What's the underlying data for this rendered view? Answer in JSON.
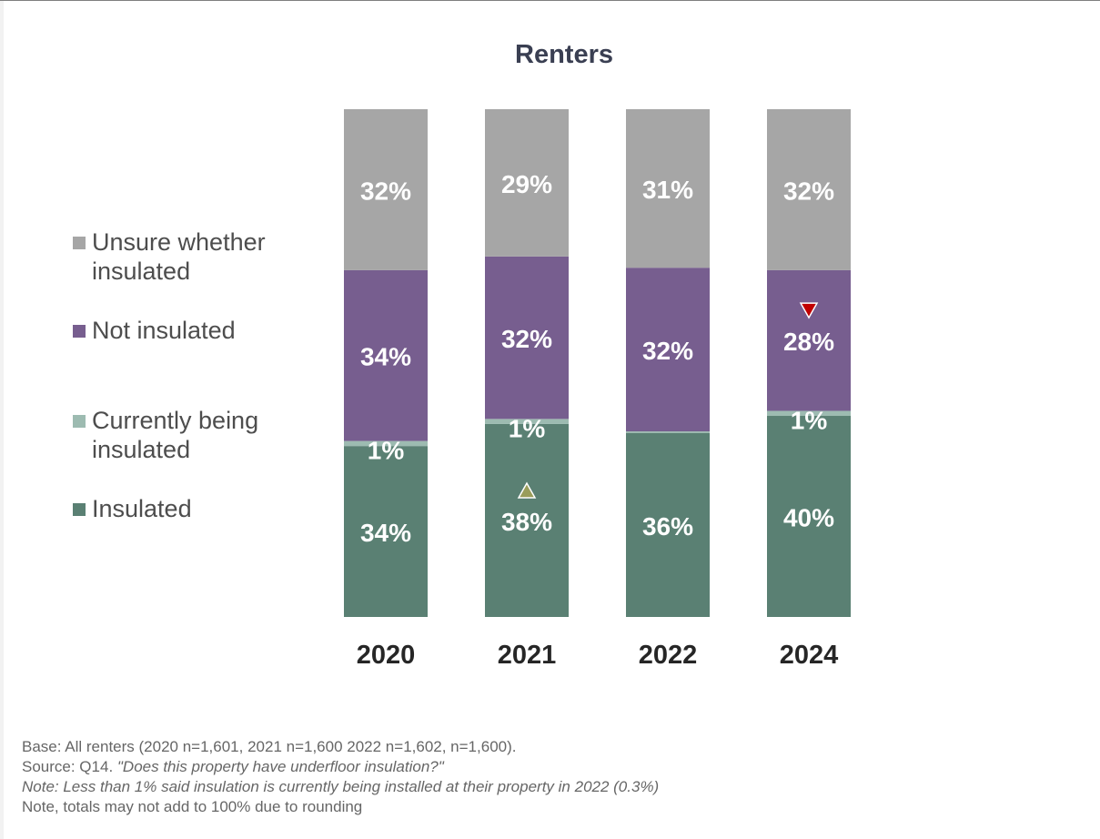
{
  "chart_data": {
    "type": "bar",
    "stacked": true,
    "title": "Renters",
    "categories": [
      "2020",
      "2021",
      "2022",
      "2024"
    ],
    "series": [
      {
        "name": "Insulated",
        "color": "#5a8073",
        "values": [
          34,
          38,
          36,
          40
        ],
        "labels": [
          "34%",
          "38%",
          "36%",
          "40%"
        ]
      },
      {
        "name": "Currently being insulated",
        "color": "#9dbbb1",
        "values": [
          1,
          1,
          0.3,
          1
        ],
        "labels": [
          "1%",
          "1%",
          "",
          "1%"
        ]
      },
      {
        "name": "Not insulated",
        "color": "#775e8f",
        "values": [
          34,
          32,
          32,
          28
        ],
        "labels": [
          "34%",
          "32%",
          "32%",
          "28%"
        ]
      },
      {
        "name": "Unsure whether insulated",
        "color": "#a6a6a6",
        "values": [
          32,
          29,
          31,
          32
        ],
        "labels": [
          "32%",
          "29%",
          "31%",
          "32%"
        ]
      }
    ],
    "significance_markers": [
      {
        "category": "2021",
        "series": "Insulated",
        "direction": "up",
        "color": "#9a9d5a"
      },
      {
        "category": "2024",
        "series": "Not insulated",
        "direction": "down",
        "color": "#c00000"
      }
    ],
    "legend_position": "left",
    "grid": false
  },
  "legend": {
    "unsure": "Unsure whether insulated",
    "not_insulated": "Not insulated",
    "currently": "Currently being insulated",
    "insulated": "Insulated"
  },
  "footnotes": {
    "base": "Base: All renters (2020 n=1,601, 2021 n=1,600 2022 n=1,602, n=1,600).",
    "source_prefix": "Source: Q14. ",
    "source_question": "\"Does this property have underfloor insulation?\"",
    "note_italic": "Note: Less than 1% said insulation is currently being installed at their property in 2022 (0.3%)",
    "note_rounding": "Note, totals may not add to 100% due to rounding"
  }
}
